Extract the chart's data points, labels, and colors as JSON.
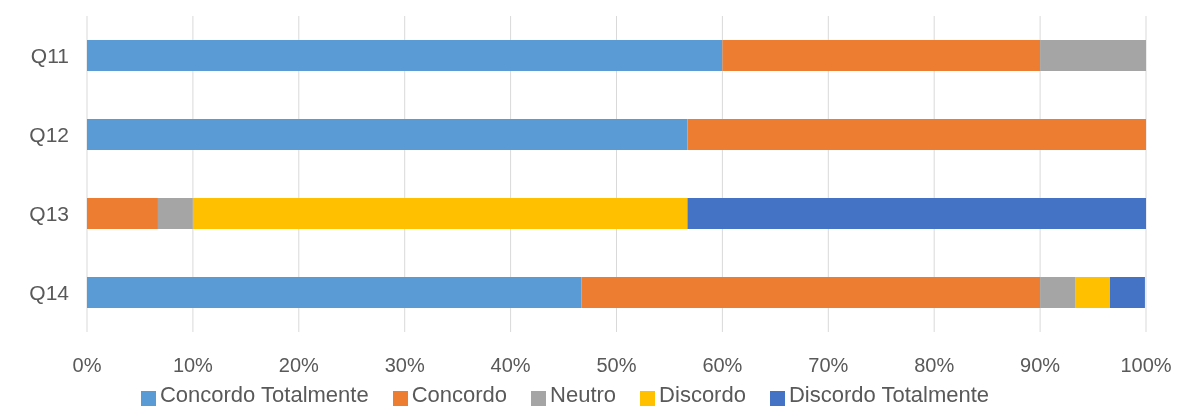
{
  "chart_data": {
    "type": "bar",
    "orientation": "horizontal",
    "stacked": true,
    "categories": [
      "Q11",
      "Q12",
      "Q13",
      "Q14"
    ],
    "series": [
      {
        "name": "Concordo Totalmente",
        "color": "#5b9bd5",
        "values": [
          60,
          56.7,
          0,
          46.7
        ]
      },
      {
        "name": "Concordo",
        "color": "#ed7d31",
        "values": [
          30,
          43.3,
          6.7,
          43.3
        ]
      },
      {
        "name": "Neutro",
        "color": "#a5a5a5",
        "values": [
          10,
          0,
          3.3,
          3.3
        ]
      },
      {
        "name": "Discordo",
        "color": "#ffc000",
        "values": [
          0,
          0,
          46.7,
          3.3
        ]
      },
      {
        "name": "Discordo Totalmente",
        "color": "#4472c4",
        "values": [
          0,
          0,
          43.3,
          3.3
        ]
      }
    ],
    "xlim": [
      0,
      100
    ],
    "xticks": [
      {
        "value": 0,
        "label": "0%"
      },
      {
        "value": 10,
        "label": "10%"
      },
      {
        "value": 20,
        "label": "20%"
      },
      {
        "value": 30,
        "label": "30%"
      },
      {
        "value": 40,
        "label": "40%"
      },
      {
        "value": 50,
        "label": "50%"
      },
      {
        "value": 60,
        "label": "60%"
      },
      {
        "value": 70,
        "label": "70%"
      },
      {
        "value": 80,
        "label": "80%"
      },
      {
        "value": 90,
        "label": "90%"
      },
      {
        "value": 100,
        "label": "100%"
      }
    ],
    "grid": "x",
    "legend": "bottom"
  }
}
